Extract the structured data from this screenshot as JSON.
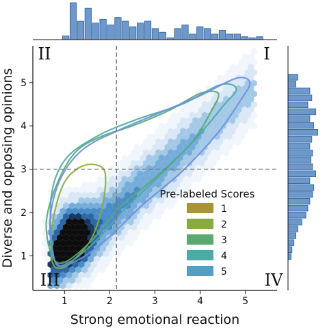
{
  "chart_data": {
    "type": "scatter",
    "subtype": "hexbin joint plot with KDE contours and marginal histograms",
    "xlabel": "Strong emotional reaction",
    "ylabel": "Diverse and opposing opinions",
    "xlim": [
      0.3,
      5.7
    ],
    "ylim": [
      0.2,
      5.85
    ],
    "xticks": [
      1,
      2,
      3,
      4,
      5
    ],
    "yticks": [
      1,
      2,
      3,
      4,
      5
    ],
    "vline_x": 2.15,
    "hline_y": 3.0,
    "quadrants": [
      "I",
      "II",
      "III",
      "IV"
    ],
    "legend": {
      "title": "Pre-labeled Scores",
      "placement": "center-right",
      "entries": [
        {
          "label": "1",
          "color": "#a89437"
        },
        {
          "label": "2",
          "color": "#88ab3f"
        },
        {
          "label": "3",
          "color": "#5aa96f"
        },
        {
          "label": "4",
          "color": "#4eaaa4"
        },
        {
          "label": "5",
          "color": "#4f9fc9"
        }
      ]
    },
    "kde_contours": [
      {
        "label": "2",
        "color": "#88ab3f",
        "points": [
          [
            0.75,
            0.8
          ],
          [
            0.95,
            0.72
          ],
          [
            1.2,
            0.9
          ],
          [
            1.6,
            1.4
          ],
          [
            1.85,
            2.2
          ],
          [
            1.9,
            2.9
          ],
          [
            1.7,
            3.1
          ],
          [
            1.35,
            3.05
          ],
          [
            1.0,
            2.7
          ],
          [
            0.78,
            2.0
          ],
          [
            0.7,
            1.3
          ]
        ]
      },
      {
        "label": "3",
        "color": "#5aa96f",
        "points": [
          [
            0.72,
            1.0
          ],
          [
            1.0,
            0.85
          ],
          [
            1.6,
            1.35
          ],
          [
            2.2,
            2.1
          ],
          [
            3.0,
            2.8
          ],
          [
            3.8,
            3.6
          ],
          [
            4.25,
            4.35
          ],
          [
            4.4,
            4.75
          ],
          [
            4.0,
            4.75
          ],
          [
            3.3,
            4.35
          ],
          [
            2.5,
            4.0
          ],
          [
            1.8,
            3.75
          ],
          [
            1.25,
            3.4
          ],
          [
            0.85,
            2.7
          ],
          [
            0.6,
            1.8
          ]
        ]
      },
      {
        "label": "4",
        "color": "#4eaaa4",
        "points": [
          [
            0.78,
            0.9
          ],
          [
            1.1,
            0.85
          ],
          [
            1.7,
            1.35
          ],
          [
            2.35,
            2.1
          ],
          [
            3.1,
            2.85
          ],
          [
            3.9,
            3.7
          ],
          [
            4.5,
            4.45
          ],
          [
            4.8,
            4.85
          ],
          [
            4.45,
            4.95
          ],
          [
            3.6,
            4.5
          ],
          [
            2.6,
            4.15
          ],
          [
            1.7,
            3.75
          ],
          [
            1.0,
            3.2
          ],
          [
            0.7,
            2.3
          ]
        ]
      },
      {
        "label": "5",
        "color": "#6b8fe0",
        "points": [
          [
            0.8,
            0.85
          ],
          [
            1.2,
            0.85
          ],
          [
            1.9,
            1.35
          ],
          [
            2.7,
            2.15
          ],
          [
            3.6,
            2.95
          ],
          [
            4.4,
            3.85
          ],
          [
            4.9,
            4.6
          ],
          [
            5.1,
            5.0
          ],
          [
            4.8,
            5.1
          ],
          [
            4.0,
            4.7
          ],
          [
            3.1,
            4.3
          ],
          [
            2.2,
            3.9
          ],
          [
            1.4,
            3.45
          ],
          [
            0.9,
            2.75
          ],
          [
            0.68,
            1.8
          ]
        ]
      }
    ],
    "top_histogram_heights": [
      0.1,
      1.0,
      0.5,
      0.85,
      0.45,
      0.55,
      0.4,
      0.6,
      0.5,
      0.35,
      0.45,
      0.5,
      0.3,
      0.2,
      0.05,
      0.3,
      0.4,
      0.15,
      0.35,
      0.3,
      0.15,
      0.25,
      0.15,
      0.15,
      0.08,
      0.05,
      0.08
    ],
    "right_histogram_heights": [
      0.25,
      0.2,
      0.55,
      0.6,
      0.5,
      0.7,
      0.55,
      0.65,
      0.75,
      0.6,
      0.55,
      0.62,
      0.58,
      0.62,
      0.7,
      0.55,
      0.65,
      0.62,
      0.55,
      0.5,
      0.45,
      0.35,
      0.25,
      0.2,
      0.15,
      0.1,
      0.08
    ]
  }
}
